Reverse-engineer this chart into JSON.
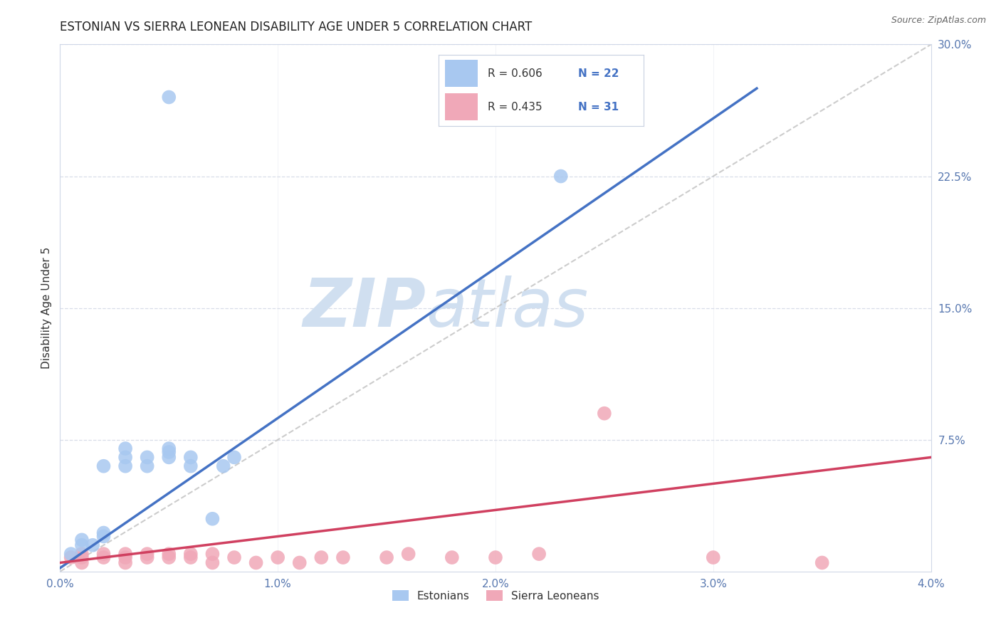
{
  "title": "ESTONIAN VS SIERRA LEONEAN DISABILITY AGE UNDER 5 CORRELATION CHART",
  "source": "Source: ZipAtlas.com",
  "ylabel": "Disability Age Under 5",
  "xlim": [
    0.0,
    0.04
  ],
  "ylim": [
    0.0,
    0.3
  ],
  "xticks": [
    0.0,
    0.01,
    0.02,
    0.03,
    0.04
  ],
  "xtick_labels": [
    "0.0%",
    "1.0%",
    "2.0%",
    "3.0%",
    "4.0%"
  ],
  "yticks_right": [
    0.0,
    0.075,
    0.15,
    0.225,
    0.3
  ],
  "ytick_labels_right": [
    "",
    "7.5%",
    "15.0%",
    "22.5%",
    "30.0%"
  ],
  "legend_label1": "Estonians",
  "legend_label2": "Sierra Leoneans",
  "color_estonian": "#a8c8f0",
  "color_sierraleone": "#f0a8b8",
  "color_line_estonian": "#4472c4",
  "color_line_sierraleone": "#d04060",
  "color_refline": "#c0c0c0",
  "watermark_zip": "ZIP",
  "watermark_atlas": "atlas",
  "watermark_color": "#d0dff0",
  "background_color": "#ffffff",
  "grid_color": "#d8dde8",
  "blue_line_x0": 0.0,
  "blue_line_y0": 0.002,
  "blue_line_x1": 0.032,
  "blue_line_y1": 0.275,
  "pink_line_x0": 0.0,
  "pink_line_y0": 0.005,
  "pink_line_x1": 0.04,
  "pink_line_y1": 0.065,
  "estonian_x": [
    0.0005,
    0.001,
    0.001,
    0.0015,
    0.002,
    0.002,
    0.002,
    0.003,
    0.003,
    0.003,
    0.004,
    0.004,
    0.005,
    0.005,
    0.005,
    0.006,
    0.006,
    0.007,
    0.0075,
    0.008,
    0.005,
    0.023
  ],
  "estonian_y": [
    0.01,
    0.015,
    0.018,
    0.015,
    0.02,
    0.022,
    0.06,
    0.06,
    0.065,
    0.07,
    0.06,
    0.065,
    0.065,
    0.068,
    0.07,
    0.06,
    0.065,
    0.03,
    0.06,
    0.065,
    0.27,
    0.225
  ],
  "sierraleone_x": [
    0.0005,
    0.001,
    0.001,
    0.001,
    0.002,
    0.002,
    0.003,
    0.003,
    0.003,
    0.004,
    0.004,
    0.005,
    0.005,
    0.006,
    0.006,
    0.007,
    0.007,
    0.008,
    0.009,
    0.01,
    0.011,
    0.012,
    0.013,
    0.015,
    0.016,
    0.018,
    0.02,
    0.022,
    0.025,
    0.03,
    0.035
  ],
  "sierraleone_y": [
    0.008,
    0.005,
    0.008,
    0.01,
    0.008,
    0.01,
    0.005,
    0.008,
    0.01,
    0.008,
    0.01,
    0.008,
    0.01,
    0.008,
    0.01,
    0.005,
    0.01,
    0.008,
    0.005,
    0.008,
    0.005,
    0.008,
    0.008,
    0.008,
    0.01,
    0.008,
    0.008,
    0.01,
    0.09,
    0.008,
    0.005
  ]
}
